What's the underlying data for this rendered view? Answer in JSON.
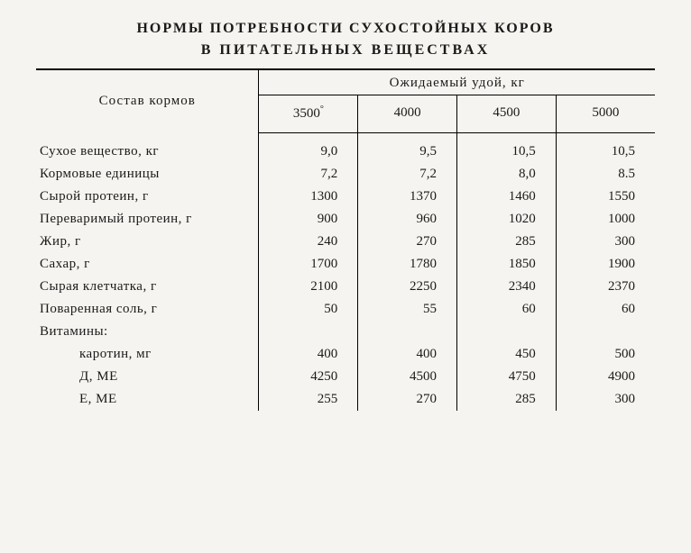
{
  "title": {
    "line1": "НОРМЫ ПОТРЕБНОСТИ СУХОСТОЙНЫХ КОРОВ",
    "line2": "В ПИТАТЕЛЬНЫХ ВЕЩЕСТВАХ"
  },
  "table": {
    "row_header": "Состав кормов",
    "super_header": "Ожидаемый удой, кг",
    "columns": [
      "3500",
      "4000",
      "4500",
      "5000"
    ],
    "col0_suffix": "°",
    "rows": [
      {
        "label": "Сухое вещество, кг",
        "vals": [
          "9,0",
          "9,5",
          "10,5",
          "10,5"
        ],
        "indent": false
      },
      {
        "label": "Кормовые единицы",
        "vals": [
          "7,2",
          "7,2",
          "8,0",
          "8.5"
        ],
        "indent": false
      },
      {
        "label": "Сырой протеин, г",
        "vals": [
          "1300",
          "1370",
          "1460",
          "1550"
        ],
        "indent": false
      },
      {
        "label": "Переваримый протеин, г",
        "vals": [
          "900",
          "960",
          "1020",
          "1000"
        ],
        "indent": false
      },
      {
        "label": "Жир, г",
        "vals": [
          "240",
          "270",
          "285",
          "300"
        ],
        "indent": false
      },
      {
        "label": "Сахар, г",
        "vals": [
          "1700",
          "1780",
          "1850",
          "1900"
        ],
        "indent": false
      },
      {
        "label": "Сырая клетчатка, г",
        "vals": [
          "2100",
          "2250",
          "2340",
          "2370"
        ],
        "indent": false
      },
      {
        "label": "Поваренная соль, г",
        "vals": [
          "50",
          "55",
          "60",
          "60"
        ],
        "indent": false
      },
      {
        "label": "Витамины:",
        "vals": [
          "",
          "",
          "",
          ""
        ],
        "indent": false
      },
      {
        "label": "каротин, мг",
        "vals": [
          "400",
          "400",
          "450",
          "500"
        ],
        "indent": true
      },
      {
        "label": "Д, МЕ",
        "vals": [
          "4250",
          "4500",
          "4750",
          "4900"
        ],
        "indent": true
      },
      {
        "label": "Е, МЕ",
        "vals": [
          "255",
          "270",
          "285",
          "300"
        ],
        "indent": true
      }
    ]
  },
  "style": {
    "background": "#f6f4f0",
    "text_color": "#1a1a1a",
    "rule_color": "#000000",
    "font_family": "serif",
    "title_fontsize_pt": 12,
    "body_fontsize_pt": 11,
    "col_widths_pct": [
      36,
      16,
      16,
      16,
      16
    ]
  }
}
